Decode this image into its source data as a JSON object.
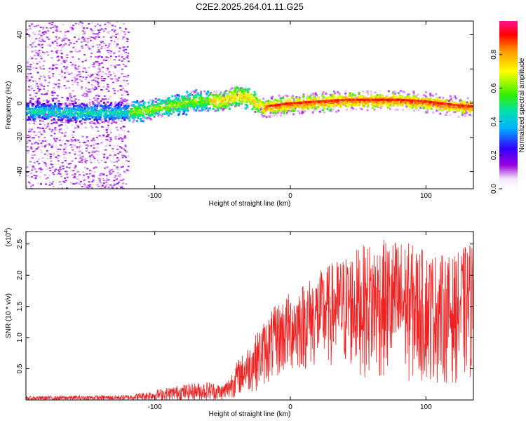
{
  "chart_data": [
    {
      "type": "heatmap",
      "title": "C2E2.2025.264.01.11.G25",
      "xlabel": "Height of straight line (km)",
      "ylabel": "Frequency (Hz)",
      "xlim": [
        -195,
        135
      ],
      "ylim": [
        -50,
        48
      ],
      "xticks": [
        -100,
        0,
        100
      ],
      "yticks": [
        -40,
        -20,
        0,
        20,
        40
      ],
      "colorbar": {
        "label": "Normalized spectral amplitude",
        "range": [
          0,
          1
        ],
        "ticks": [
          "0.0",
          "0.2",
          "0.4",
          "0.6",
          "0.8"
        ],
        "tick_values": [
          0.0,
          0.2,
          0.4,
          0.6,
          0.8
        ]
      },
      "ridge": {
        "x": [
          -195,
          -160,
          -130,
          -110,
          -90,
          -70,
          -50,
          -40,
          -30,
          -25,
          -20,
          -10,
          0,
          20,
          40,
          60,
          80,
          100,
          120,
          135
        ],
        "freq": [
          -4,
          -5,
          -5,
          -4,
          -1,
          2,
          2,
          5,
          3,
          0,
          -2,
          -1,
          0,
          1,
          2,
          2,
          2,
          1,
          -1,
          -2
        ]
      }
    },
    {
      "type": "line",
      "xlabel": "Height of straight line (km)",
      "ylabel": "SNR (10 * v/v)",
      "y_scale_label": "(x10",
      "y_scale_exp": "4",
      "y_scale_close": ")",
      "xlim": [
        -195,
        135
      ],
      "ylim": [
        0,
        2.7
      ],
      "xticks": [
        -100,
        0,
        100
      ],
      "yticks": [
        "0.5",
        "1.0",
        "1.5",
        "2.0",
        "2.5"
      ],
      "ytick_values": [
        0.5,
        1.0,
        1.5,
        2.0,
        2.5
      ],
      "series": [
        {
          "name": "SNR",
          "color": "#ee2222",
          "envelope_x": [
            -195,
            -120,
            -100,
            -80,
            -60,
            -50,
            -45,
            -40,
            -30,
            -20,
            -10,
            0,
            10,
            30,
            50,
            60,
            80,
            100,
            120,
            135
          ],
          "envelope_max": [
            0.06,
            0.08,
            0.16,
            0.25,
            0.3,
            0.25,
            0.38,
            0.6,
            0.9,
            1.25,
            1.55,
            1.75,
            1.9,
            2.2,
            2.45,
            2.55,
            2.6,
            2.4,
            2.3,
            2.6
          ],
          "envelope_min": [
            0.0,
            0.0,
            0.0,
            0.0,
            0.0,
            0.0,
            0.0,
            0.05,
            0.1,
            0.2,
            0.3,
            0.4,
            0.45,
            0.5,
            0.4,
            0.3,
            0.25,
            0.25,
            0.25,
            0.3
          ]
        }
      ]
    }
  ]
}
